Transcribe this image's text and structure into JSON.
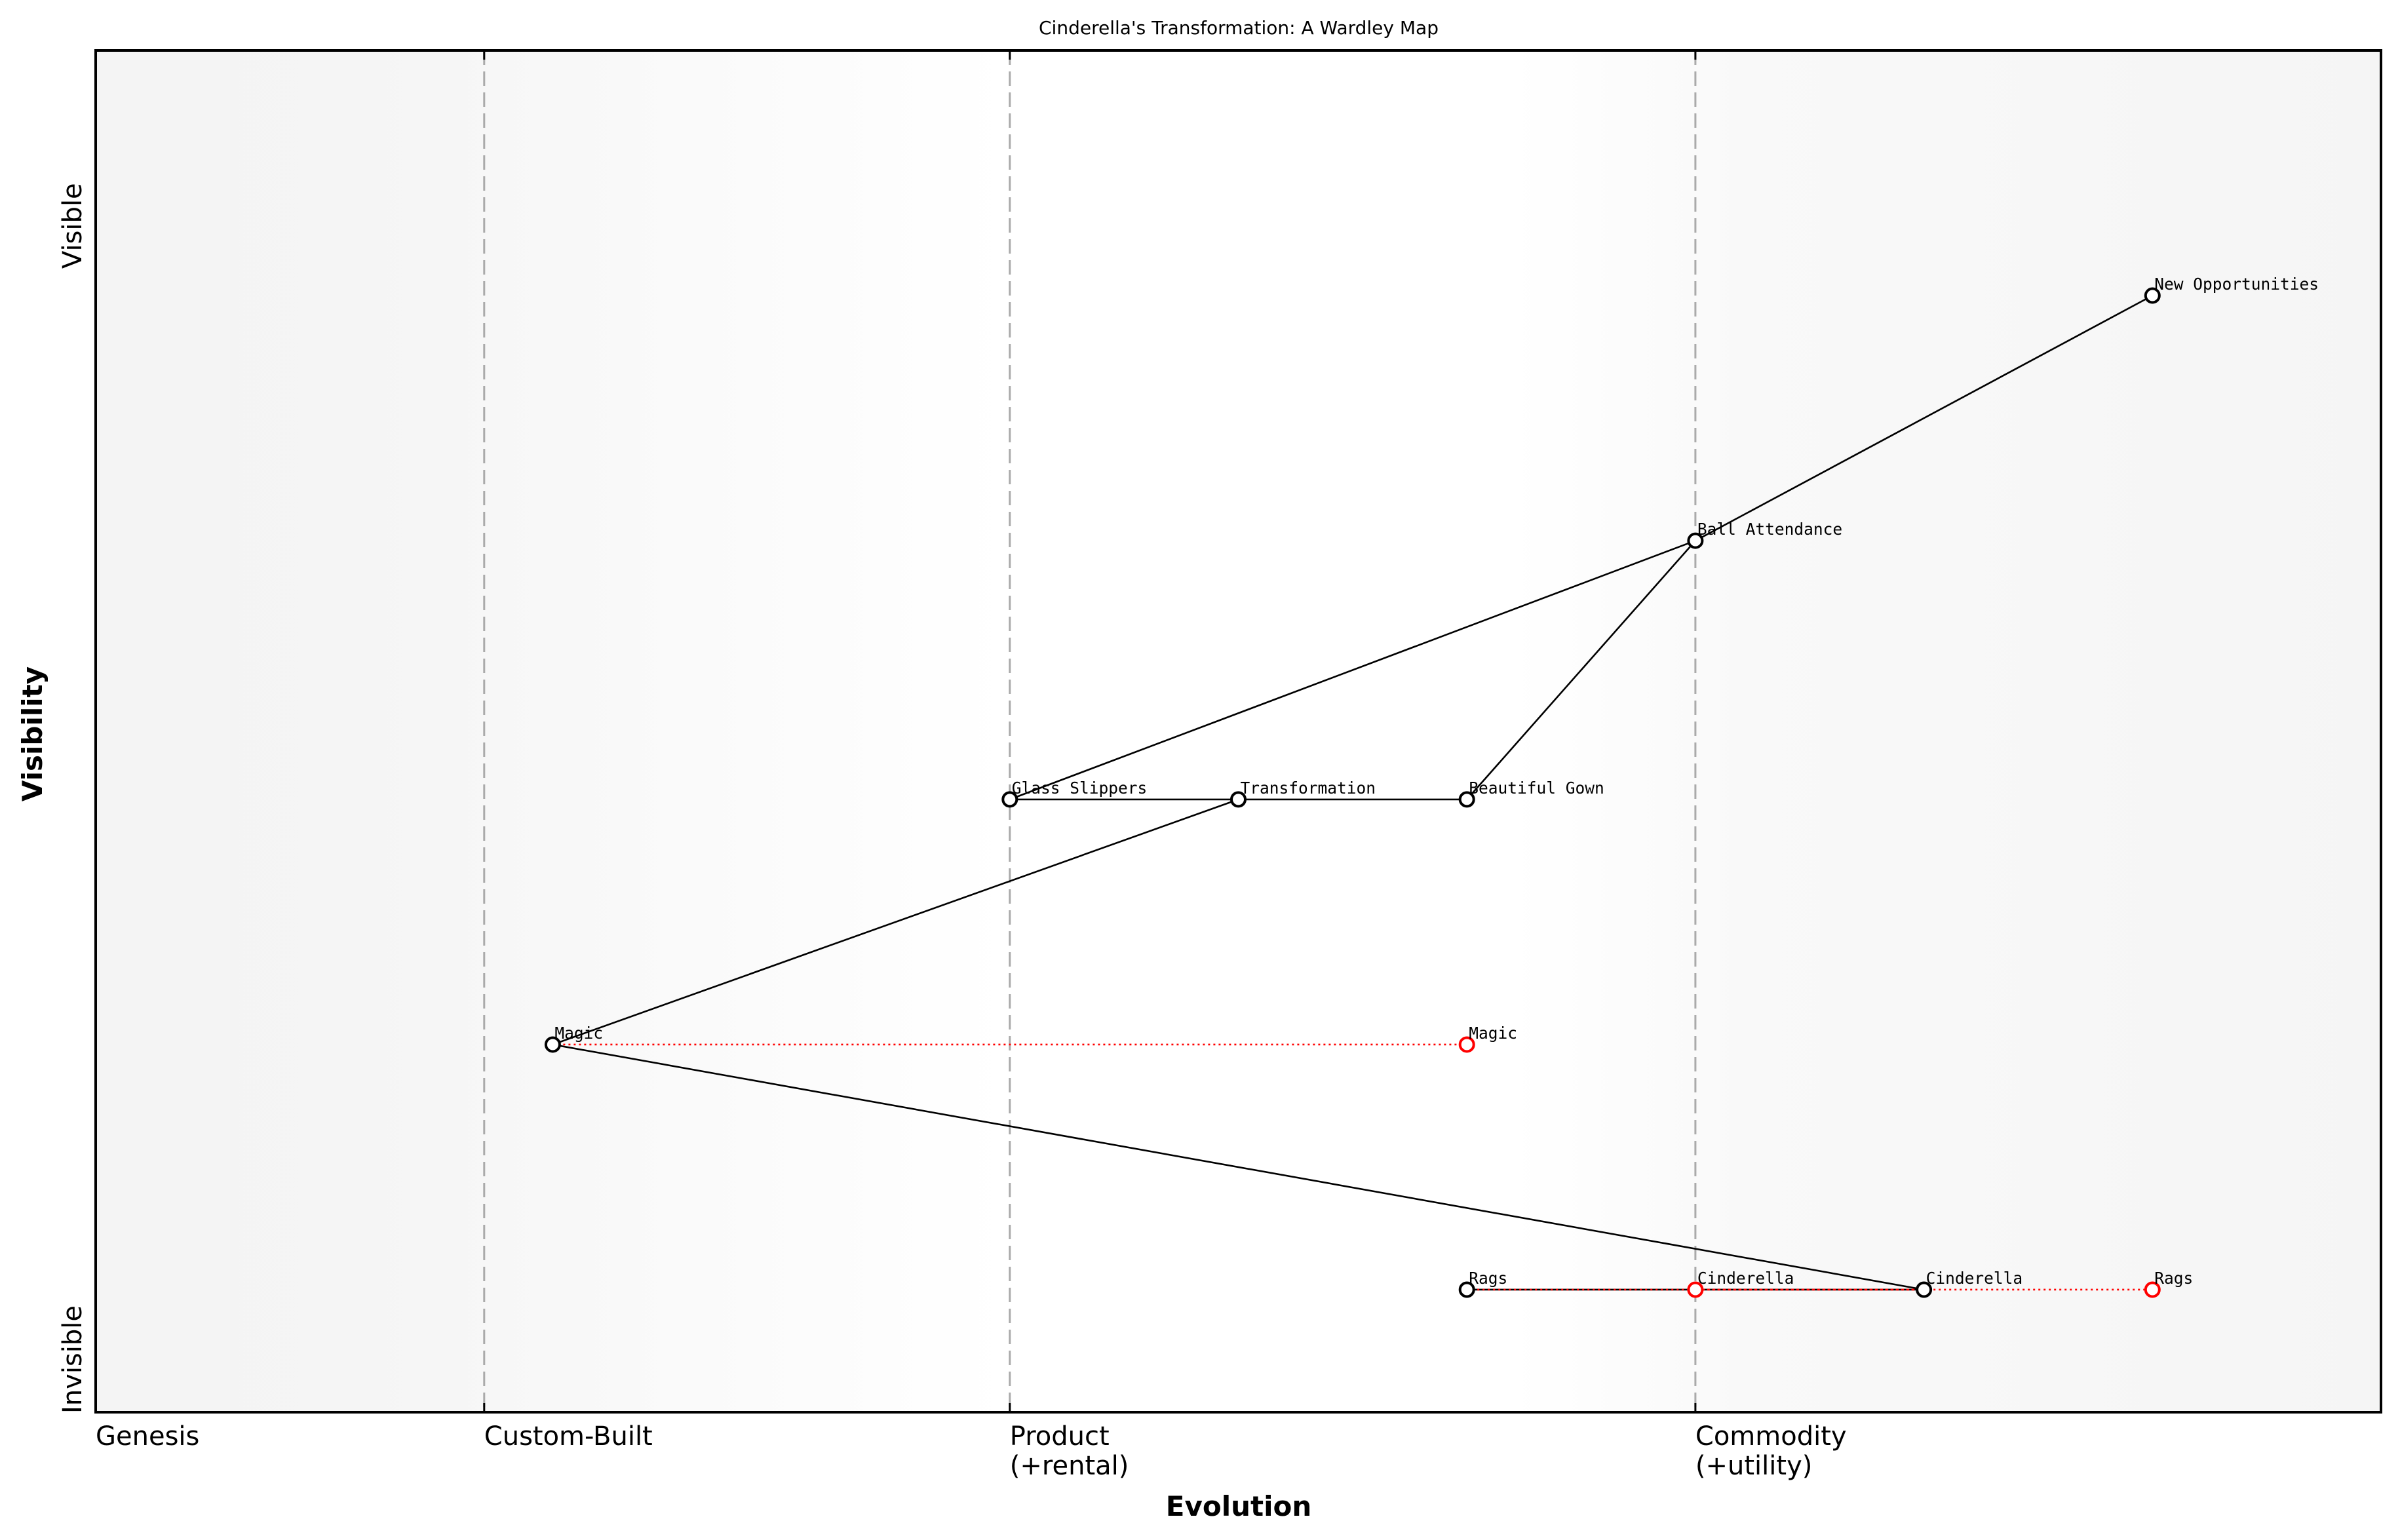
{
  "title": "Cinderella's Transformation: A Wardley Map",
  "axes": {
    "x_title": "Evolution",
    "y_title": "Visibility",
    "y_top_label": "Visible",
    "y_bottom_label": "Invisible",
    "stages": [
      {
        "label": "Genesis",
        "label2": "",
        "x": 0.0
      },
      {
        "label": "Custom-Built",
        "label2": "",
        "x": 0.17
      },
      {
        "label": "Product",
        "label2": "(+rental)",
        "x": 0.4
      },
      {
        "label": "Commodity",
        "label2": "(+utility)",
        "x": 0.7
      }
    ]
  },
  "colors": {
    "node_stroke": "#000000",
    "evolved_stroke": "#ff0000",
    "link": "#000000",
    "evolution_link": "#ff0000",
    "stage_line": "#aaaaaa",
    "bg_edge": "#f5f5f5",
    "bg_center": "#ffffff"
  },
  "chart_data": {
    "type": "wardley-map",
    "title": "Cinderella's Transformation: A Wardley Map",
    "xlabel": "Evolution",
    "ylabel": "Visibility",
    "xlim": [
      0,
      1
    ],
    "ylim": [
      0,
      1
    ],
    "x_stage_ticks": [
      {
        "label": "Genesis",
        "x": 0.0
      },
      {
        "label": "Custom-Built",
        "x": 0.17
      },
      {
        "label": "Product\n(+rental)",
        "x": 0.4
      },
      {
        "label": "Commodity\n(+utility)",
        "x": 0.7
      }
    ],
    "y_ticks": [
      {
        "label": "Invisible",
        "y": 0
      },
      {
        "label": "Visible",
        "y": 1
      }
    ],
    "nodes": [
      {
        "id": "new_opportunities",
        "label": "New Opportunities",
        "x": 0.9,
        "y": 0.82,
        "type": "component"
      },
      {
        "id": "ball_attendance",
        "label": "Ball Attendance",
        "x": 0.7,
        "y": 0.64,
        "type": "component"
      },
      {
        "id": "glass_slippers",
        "label": "Glass Slippers",
        "x": 0.4,
        "y": 0.45,
        "type": "component"
      },
      {
        "id": "transformation",
        "label": "Transformation",
        "x": 0.5,
        "y": 0.45,
        "type": "component"
      },
      {
        "id": "beautiful_gown",
        "label": "Beautiful Gown",
        "x": 0.6,
        "y": 0.45,
        "type": "component"
      },
      {
        "id": "magic",
        "label": "Magic",
        "x": 0.2,
        "y": 0.27,
        "type": "component"
      },
      {
        "id": "rags",
        "label": "Rags",
        "x": 0.6,
        "y": 0.09,
        "type": "component"
      },
      {
        "id": "cinderella",
        "label": "Cinderella",
        "x": 0.8,
        "y": 0.09,
        "type": "component"
      },
      {
        "id": "magic_evolved",
        "label": "Magic",
        "x": 0.6,
        "y": 0.27,
        "type": "evolved"
      },
      {
        "id": "cinderella_evolved",
        "label": "Cinderella",
        "x": 0.7,
        "y": 0.09,
        "type": "evolved"
      },
      {
        "id": "rags_evolved",
        "label": "Rags",
        "x": 0.9,
        "y": 0.09,
        "type": "evolved"
      }
    ],
    "links": [
      {
        "from": "ball_attendance",
        "to": "new_opportunities"
      },
      {
        "from": "glass_slippers",
        "to": "ball_attendance"
      },
      {
        "from": "beautiful_gown",
        "to": "ball_attendance"
      },
      {
        "from": "glass_slippers",
        "to": "transformation"
      },
      {
        "from": "transformation",
        "to": "beautiful_gown"
      },
      {
        "from": "magic",
        "to": "transformation"
      },
      {
        "from": "magic",
        "to": "cinderella"
      },
      {
        "from": "rags",
        "to": "cinderella"
      }
    ],
    "evolution_links": [
      {
        "from": "magic",
        "to": "magic_evolved"
      },
      {
        "from": "cinderella",
        "to": "cinderella_evolved"
      },
      {
        "from": "rags",
        "to": "rags_evolved"
      }
    ]
  }
}
